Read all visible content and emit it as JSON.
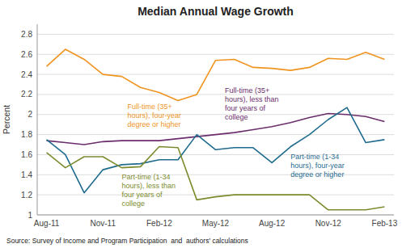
{
  "chart_data": {
    "type": "line",
    "title": "Median Annual Wage Growth",
    "ylabel": "Percent",
    "annotations": [
      "Source: Survey of Income and Program Participation  and  authors' calculations"
    ],
    "categories": [
      "Aug-11",
      null,
      null,
      "Nov-11",
      null,
      null,
      "Feb-12",
      null,
      null,
      "May-12",
      null,
      null,
      "Aug-12",
      null,
      null,
      "Nov-12",
      null,
      null,
      "Feb-13"
    ],
    "series": [
      {
        "name": "Full-time (35+\nhours), four-year\ndegree or higher",
        "color": "#F0941F",
        "values": [
          2.48,
          2.65,
          2.55,
          2.4,
          2.38,
          2.27,
          2.22,
          2.14,
          2.2,
          2.54,
          2.55,
          2.47,
          2.46,
          2.44,
          2.47,
          2.56,
          2.55,
          2.62,
          2.55
        ]
      },
      {
        "name": "Full-time (35+\nhours), less than\nfour years of\ncollege",
        "color": "#6B2D6B",
        "values": [
          1.74,
          1.72,
          1.7,
          1.73,
          1.74,
          1.74,
          1.74,
          1.76,
          1.78,
          1.8,
          1.82,
          1.85,
          1.88,
          1.92,
          1.97,
          2.01,
          2.0,
          1.98,
          1.93
        ]
      },
      {
        "name": "Part-time (1-34\nhours), four-year\ndegree or higher",
        "color": "#1F6B8E",
        "values": [
          1.75,
          1.6,
          1.22,
          1.45,
          1.5,
          1.51,
          1.55,
          1.55,
          1.8,
          1.65,
          1.67,
          1.67,
          1.52,
          1.68,
          1.8,
          1.95,
          2.07,
          1.72,
          1.75
        ]
      },
      {
        "name": "Part-time (1-34\nhours), less than\nfour years of\ncollege",
        "color": "#7D8B2E",
        "values": [
          1.62,
          1.47,
          1.58,
          1.58,
          1.47,
          1.48,
          1.68,
          1.67,
          1.15,
          1.18,
          1.2,
          1.2,
          1.2,
          1.2,
          1.2,
          1.05,
          1.05,
          1.05,
          1.08
        ]
      }
    ],
    "ylim": [
      1.0,
      2.9
    ],
    "yticks": [
      1,
      1.2,
      1.4,
      1.6,
      1.8,
      2,
      2.2,
      2.4,
      2.6,
      2.8
    ],
    "grid": true
  }
}
